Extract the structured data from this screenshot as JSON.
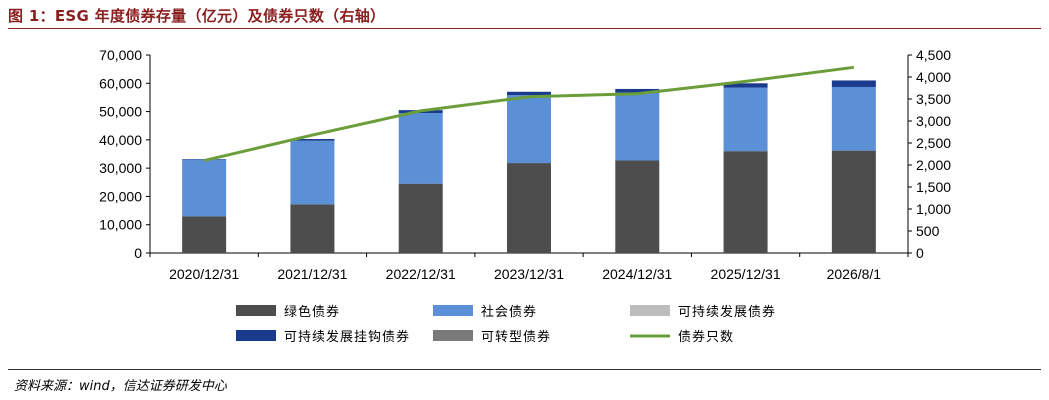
{
  "title": "图 1：ESG 年度债券存量（亿元）及债券只数（右轴）",
  "source": "资料来源：wind，信达证券研发中心",
  "chart_data": {
    "type": "bar",
    "stacked": true,
    "categories": [
      "2020/12/31",
      "2021/12/31",
      "2022/12/31",
      "2023/12/31",
      "2024/12/31",
      "2025/12/31",
      "2026/8/1"
    ],
    "y_left": {
      "ylim": [
        0,
        70000
      ],
      "ticks": [
        0,
        10000,
        20000,
        30000,
        40000,
        50000,
        60000,
        70000
      ],
      "tick_labels": [
        "0",
        "10,000",
        "20,000",
        "30,000",
        "40,000",
        "50,000",
        "60,000",
        "70,000"
      ]
    },
    "y_right": {
      "ylim": [
        0,
        4500
      ],
      "ticks": [
        0,
        500,
        1000,
        1500,
        2000,
        2500,
        3000,
        3500,
        4000,
        4500
      ],
      "tick_labels": [
        "0",
        "500",
        "1,000",
        "1,500",
        "2,000",
        "2,500",
        "3,000",
        "3,500",
        "4,000",
        "4,500"
      ]
    },
    "series": [
      {
        "name": "绿色债券",
        "kind": "bar",
        "color": "#4d4d4d",
        "values": [
          13000,
          17200,
          24500,
          31800,
          32700,
          36000,
          36200
        ]
      },
      {
        "name": "社会债券",
        "kind": "bar",
        "color": "#5b8fd6",
        "values": [
          20000,
          22500,
          25000,
          24000,
          24000,
          22500,
          22500
        ]
      },
      {
        "name": "可持续发展债券",
        "kind": "bar",
        "color": "#bdbdbd",
        "values": [
          0,
          0,
          0,
          0,
          0,
          0,
          0
        ]
      },
      {
        "name": "可持续发展挂钩债券",
        "kind": "bar",
        "color": "#1a3a8c",
        "values": [
          200,
          600,
          1000,
          1200,
          1300,
          1500,
          2300
        ]
      },
      {
        "name": "可转型债券",
        "kind": "bar",
        "color": "#7a7a7a",
        "values": [
          0,
          0,
          0,
          0,
          0,
          0,
          0
        ]
      },
      {
        "name": "债券只数",
        "kind": "line",
        "axis": "right",
        "color": "#6b9e3a",
        "values": [
          2100,
          2680,
          3230,
          3550,
          3620,
          3900,
          4220
        ]
      }
    ],
    "legend": {
      "placement": "bottom",
      "columns": 3
    }
  }
}
